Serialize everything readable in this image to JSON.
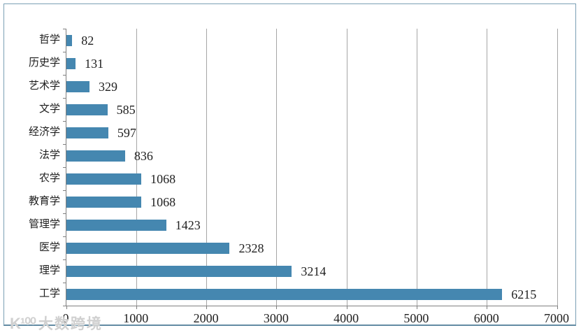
{
  "chart_data": {
    "type": "bar",
    "orientation": "horizontal",
    "title": "",
    "xlabel": "",
    "ylabel": "",
    "categories": [
      "哲学",
      "历史学",
      "艺术学",
      "文学",
      "经济学",
      "法学",
      "农学",
      "教育学",
      "管理学",
      "医学",
      "理学",
      "工学"
    ],
    "values": [
      82,
      131,
      329,
      585,
      597,
      836,
      1068,
      1068,
      1423,
      2328,
      3214,
      6215
    ],
    "value_labels": [
      "82",
      "131",
      "329",
      "585",
      "597",
      "836",
      "1068",
      "1068",
      "1423",
      "2328",
      "3214",
      "6215"
    ],
    "xlim": [
      0,
      7000
    ],
    "xticks": [
      0,
      1000,
      2000,
      3000,
      4000,
      5000,
      6000,
      7000
    ],
    "xtick_labels": [
      "0",
      "1000",
      "2000",
      "3000",
      "4000",
      "5000",
      "6000",
      "7000"
    ],
    "grid": "vertical",
    "legend": "none",
    "bar_color": "#4587b0",
    "gridline_color": "#a6a6a6",
    "axis_color": "#7f7f7f",
    "frame_border_color": "#7b9fb5"
  },
  "watermark": {
    "logo": "K¹⁰⁰",
    "text": "大数跨境"
  }
}
